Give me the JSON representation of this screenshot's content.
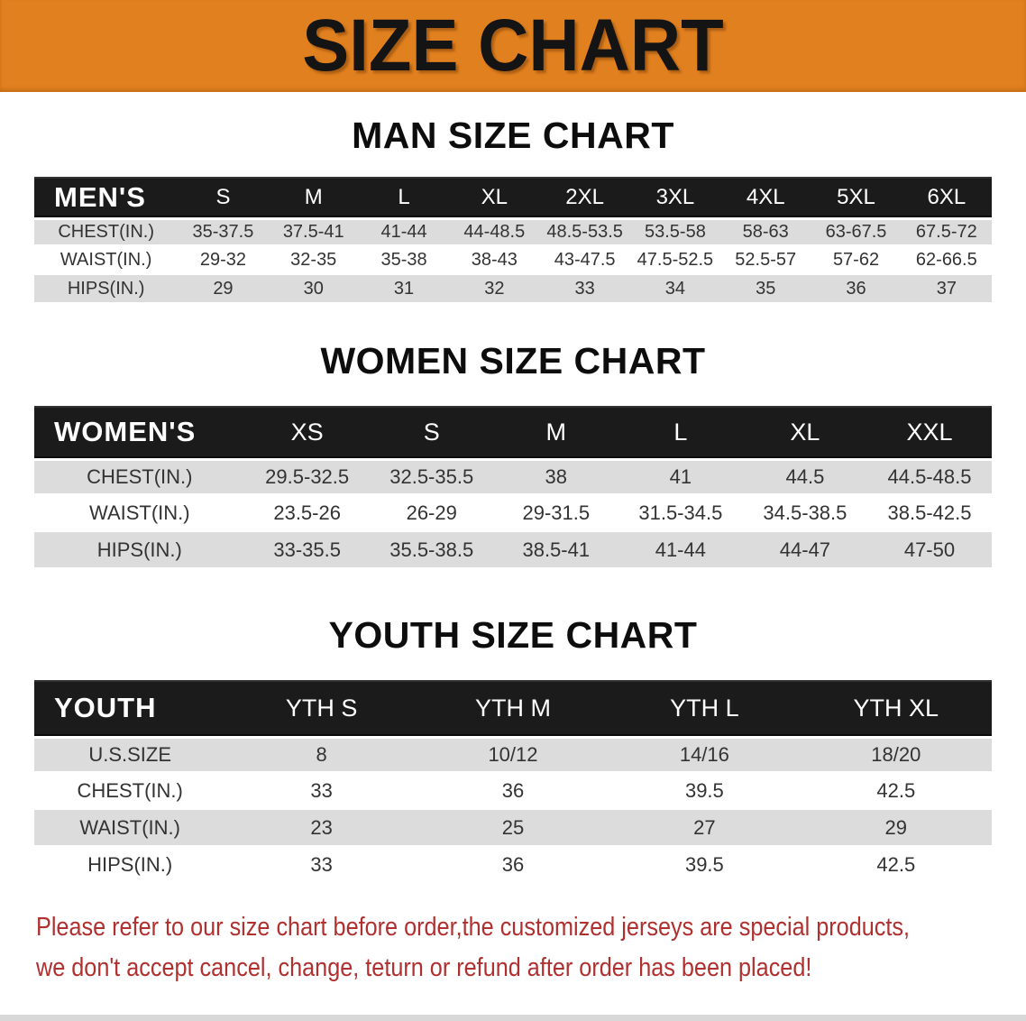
{
  "banner": {
    "title": "SIZE CHART"
  },
  "colors": {
    "orange": "#E1801E",
    "header_bar": "#1B1B1B",
    "row_gray": "#DCDCDC",
    "row_white": "#FFFFFF",
    "warning_red": "#B03030"
  },
  "men": {
    "title": "MAN SIZE CHART",
    "corner": "MEN'S",
    "sizes": [
      "S",
      "M",
      "L",
      "XL",
      "2XL",
      "3XL",
      "4XL",
      "5XL",
      "6XL"
    ],
    "rows": [
      {
        "label": "CHEST(IN.)",
        "values": [
          "35-37.5",
          "37.5-41",
          "41-44",
          "44-48.5",
          "48.5-53.5",
          "53.5-58",
          "58-63",
          "63-67.5",
          "67.5-72"
        ]
      },
      {
        "label": "WAIST(IN.)",
        "values": [
          "29-32",
          "32-35",
          "35-38",
          "38-43",
          "43-47.5",
          "47.5-52.5",
          "52.5-57",
          "57-62",
          "62-66.5"
        ]
      },
      {
        "label": "HIPS(IN.)",
        "values": [
          "29",
          "30",
          "31",
          "32",
          "33",
          "34",
          "35",
          "36",
          "37"
        ]
      }
    ]
  },
  "women": {
    "title": "WOMEN SIZE CHART",
    "corner": "WOMEN'S",
    "sizes": [
      "XS",
      "S",
      "M",
      "L",
      "XL",
      "XXL"
    ],
    "rows": [
      {
        "label": "CHEST(IN.)",
        "values": [
          "29.5-32.5",
          "32.5-35.5",
          "38",
          "41",
          "44.5",
          "44.5-48.5"
        ]
      },
      {
        "label": "WAIST(IN.)",
        "values": [
          "23.5-26",
          "26-29",
          "29-31.5",
          "31.5-34.5",
          "34.5-38.5",
          "38.5-42.5"
        ]
      },
      {
        "label": "HIPS(IN.)",
        "values": [
          "33-35.5",
          "35.5-38.5",
          "38.5-41",
          "41-44",
          "44-47",
          "47-50"
        ]
      }
    ]
  },
  "youth": {
    "title": "YOUTH SIZE CHART",
    "corner": "YOUTH",
    "sizes": [
      "YTH S",
      "YTH M",
      "YTH L",
      "YTH XL"
    ],
    "rows": [
      {
        "label": "U.S.SIZE",
        "values": [
          "8",
          "10/12",
          "14/16",
          "18/20"
        ]
      },
      {
        "label": "CHEST(IN.)",
        "values": [
          "33",
          "36",
          "39.5",
          "42.5"
        ]
      },
      {
        "label": "WAIST(IN.)",
        "values": [
          "23",
          "25",
          "27",
          "29"
        ]
      },
      {
        "label": "HIPS(IN.)",
        "values": [
          "33",
          "36",
          "39.5",
          "42.5"
        ]
      }
    ]
  },
  "warning": {
    "line1": "Please refer to our size chart before order,the customized jerseys are special products,",
    "line2": "we don't accept cancel, change, teturn or refund after order has been placed!"
  }
}
